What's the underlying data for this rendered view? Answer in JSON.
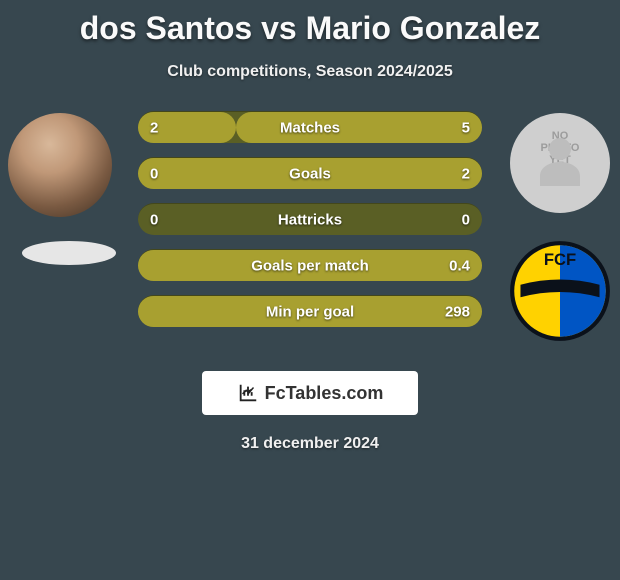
{
  "title": "dos Santos vs Mario Gonzalez",
  "subtitle": "Club competitions, Season 2024/2025",
  "date": "31 december 2024",
  "logo_text": "FcTables.com",
  "colors": {
    "background": "#37474f",
    "bar_bg": "#5a5f25",
    "bar_fill": "#a8a030",
    "title_color": "#fafafa",
    "text_color": "#f0f0f0"
  },
  "left": {
    "player_name": "dos Santos",
    "has_photo": true,
    "club_placeholder": true
  },
  "right": {
    "player_name": "Mario Gonzalez",
    "has_photo": false,
    "no_photo_text": "NO PHOTO YET",
    "club": {
      "name": "FCF",
      "primary_color": "#0055c4",
      "secondary_color": "#ffd200"
    }
  },
  "stats": [
    {
      "metric": "Matches",
      "left_val": "2",
      "right_val": "5",
      "left_pct": 28.6,
      "right_pct": 71.4
    },
    {
      "metric": "Goals",
      "left_val": "0",
      "right_val": "2",
      "left_pct": 0,
      "right_pct": 100
    },
    {
      "metric": "Hattricks",
      "left_val": "0",
      "right_val": "0",
      "left_pct": 0,
      "right_pct": 0
    },
    {
      "metric": "Goals per match",
      "left_val": "",
      "right_val": "0.4",
      "left_pct": 0,
      "right_pct": 100
    },
    {
      "metric": "Min per goal",
      "left_val": "",
      "right_val": "298",
      "left_pct": 0,
      "right_pct": 100
    }
  ]
}
